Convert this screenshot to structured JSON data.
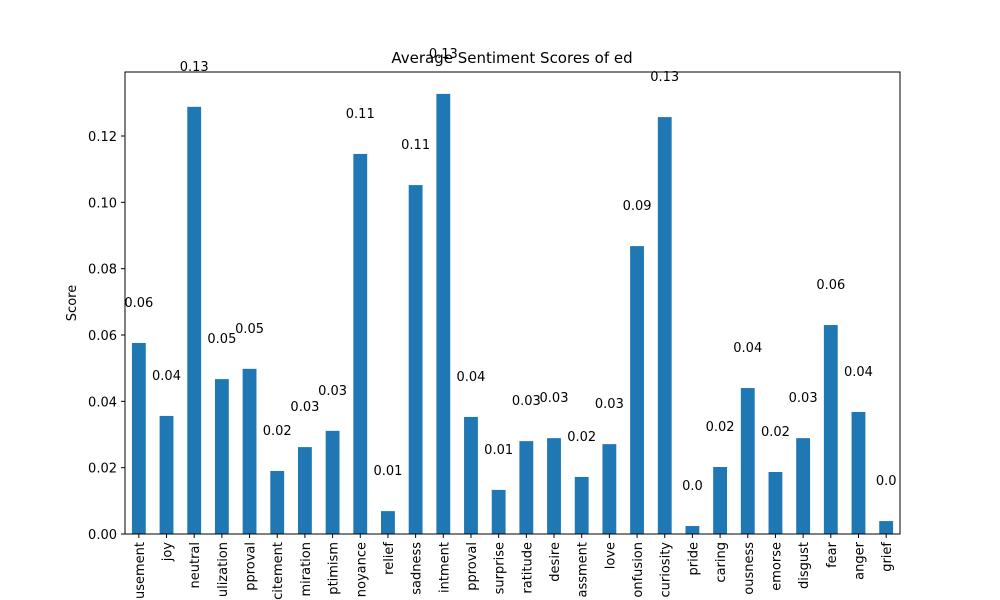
{
  "chart_data": {
    "type": "bar",
    "title": "Average Sentiment Scores of ed",
    "y_label": "Score",
    "categories": [
      "usement",
      "joy",
      "neutral",
      "ulization",
      "pproval",
      "citement",
      "miration",
      "ptimism",
      "noyance",
      "relief",
      "sadness",
      "intment",
      "pproval",
      "surprise",
      "ratitude",
      "desire",
      "assment",
      "love",
      "onfusion",
      "curiosity",
      "pride",
      "caring",
      "ousness",
      "emorse",
      "disgust",
      "fear",
      "anger",
      "grief"
    ],
    "values": [
      0.0576,
      0.0356,
      0.1288,
      0.0467,
      0.0498,
      0.019,
      0.0262,
      0.0311,
      0.1146,
      0.0069,
      0.1052,
      0.1327,
      0.0353,
      0.0133,
      0.028,
      0.0289,
      0.0172,
      0.0271,
      0.0868,
      0.1257,
      0.0024,
      0.0202,
      0.044,
      0.0187,
      0.0289,
      0.063,
      0.0368,
      0.0039
    ],
    "value_labels": [
      "0.06",
      "0.04",
      "0.13",
      "0.05",
      "0.05",
      "0.02",
      "0.03",
      "0.03",
      "0.11",
      "0.01",
      "0.11",
      "0.13",
      "0.04",
      "0.01",
      "0.03",
      "0.03",
      "0.02",
      "0.03",
      "0.09",
      "0.13",
      "0.0",
      "0.02",
      "0.04",
      "0.02",
      "0.03",
      "0.06",
      "0.04",
      "0.0"
    ],
    "color": "#1f77b4",
    "ylim": [
      0,
      0.1393
    ],
    "yticks": [
      {
        "value": 0,
        "label": "0.00"
      },
      {
        "value": 0.02,
        "label": "0.02"
      },
      {
        "value": 0.04,
        "label": "0.04"
      },
      {
        "value": 0.06,
        "label": "0.06"
      },
      {
        "value": 0.08,
        "label": "0.08"
      },
      {
        "value": 0.1,
        "label": "0.10"
      },
      {
        "value": 0.12,
        "label": "0.12"
      }
    ],
    "grid": false
  }
}
